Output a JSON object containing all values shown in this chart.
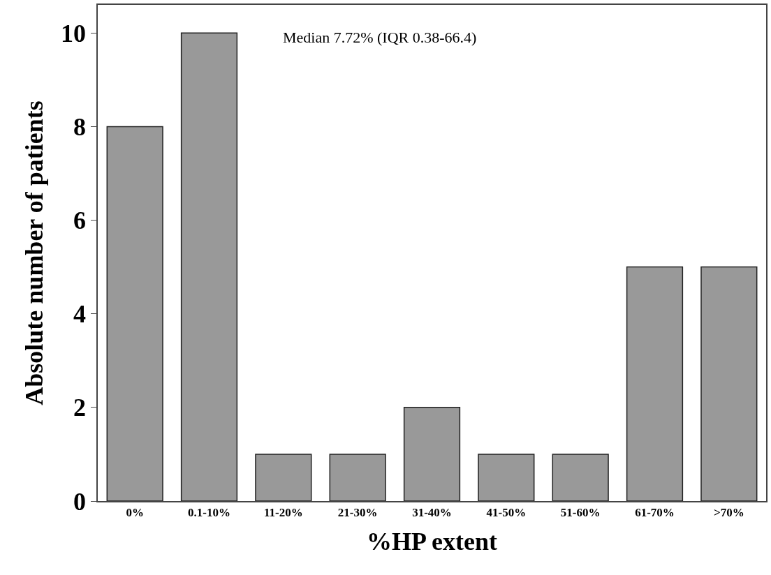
{
  "chart_data": {
    "type": "bar",
    "categories": [
      "0%",
      "0.1-10%",
      "11-20%",
      "21-30%",
      "31-40%",
      "41-50%",
      "51-60%",
      "61-70%",
      ">70%"
    ],
    "values": [
      8,
      10,
      1,
      1,
      2,
      1,
      1,
      5,
      5
    ],
    "color": "#999999",
    "xlabel": "%HP extent",
    "ylabel": "Absolute number of patients",
    "ylim": [
      0,
      10.6
    ],
    "yticks": [
      0,
      2,
      4,
      6,
      8,
      10
    ],
    "grid": false,
    "annotations": [
      "Median 7.72% (IQR 0.38-66.4)"
    ]
  }
}
